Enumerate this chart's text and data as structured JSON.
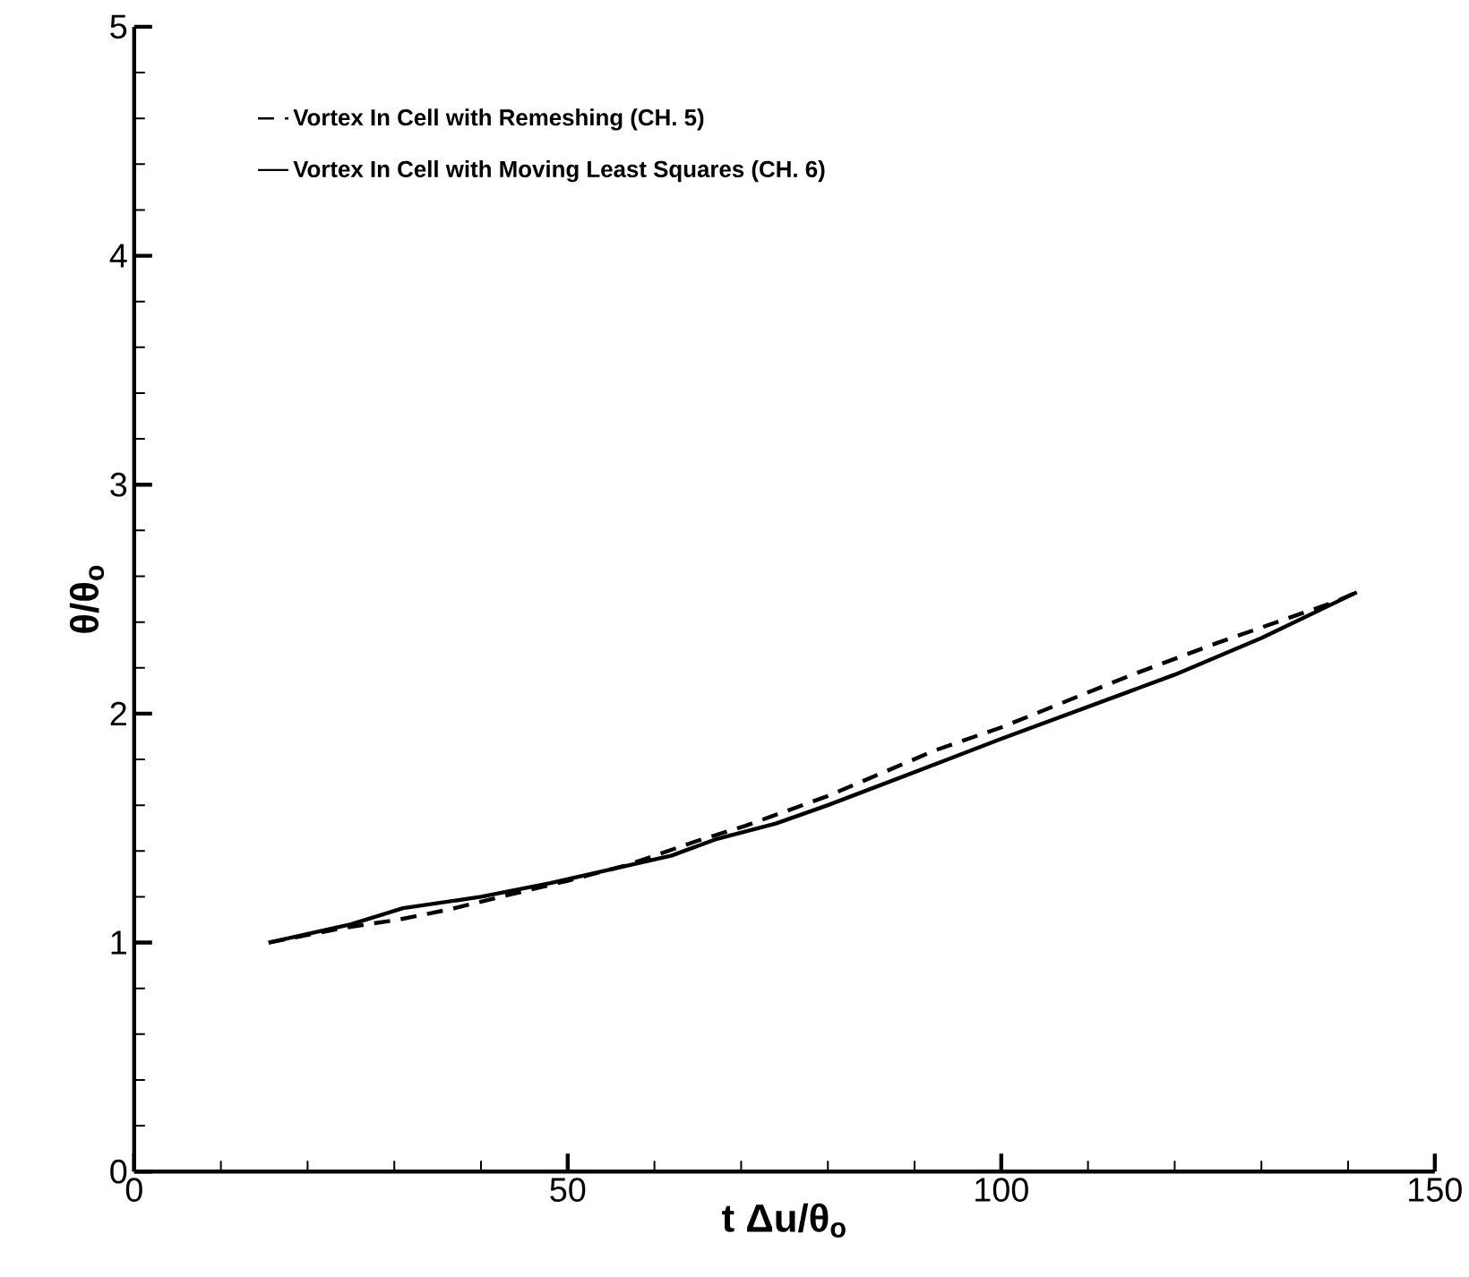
{
  "chart_data": {
    "type": "line",
    "xlabel": "**t** Δ**u**/θ$_{o}$",
    "ylabel": "θ/θ$_{o}$",
    "xlim": [
      0,
      150
    ],
    "ylim": [
      0,
      5
    ],
    "xticks": [
      0,
      50,
      100,
      150
    ],
    "yticks": [
      0,
      1,
      2,
      3,
      4,
      5
    ],
    "legend": "top left",
    "series": [
      {
        "name": "Vortex  In Cell with Remeshing (CH. 5)",
        "color": "#000000",
        "line_style": "dashed",
        "x": [
          15.5,
          24.3,
          30.5,
          36.5,
          42.3,
          50,
          57,
          65,
          70.5,
          80,
          92.4,
          100,
          115.1,
          125,
          138.6,
          141
        ],
        "values": [
          1.0,
          1.065,
          1.1,
          1.146,
          1.2,
          1.27,
          1.34,
          1.445,
          1.51,
          1.64,
          1.84,
          1.94,
          2.17,
          2.31,
          2.49,
          2.53
        ]
      },
      {
        "name": "Vortex  In Cell  with Moving Least Squares (CH. 6)",
        "color": "#000000",
        "line_style": "solid",
        "x": [
          15.5,
          25,
          31,
          40,
          48,
          55,
          62,
          67,
          74,
          80,
          94.5,
          100,
          115,
          120,
          130,
          141
        ],
        "values": [
          1.0,
          1.08,
          1.15,
          1.2,
          1.26,
          1.32,
          1.38,
          1.45,
          1.52,
          1.6,
          1.81,
          1.89,
          2.1,
          2.17,
          2.33,
          2.53
        ]
      }
    ]
  }
}
